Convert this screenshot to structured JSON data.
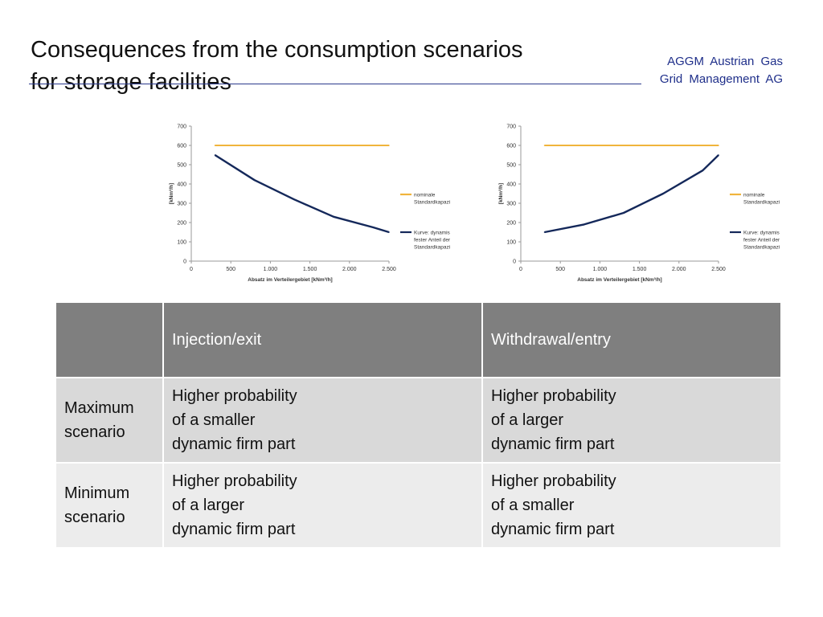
{
  "slide": {
    "title_line1": "Consequences from the consumption scenarios",
    "title_line2": "for storage facilities",
    "brand_line1": "AGGM   Austrian   Gas",
    "brand_line2": "Grid Management  AG"
  },
  "chart_data": [
    {
      "type": "line",
      "xlabel": "Absatz im Verteilergebiet [kNm³/h]",
      "ylabel": "[kNm³/h]",
      "xlim": [
        0,
        2500
      ],
      "ylim": [
        0,
        700
      ],
      "xticks": [
        0,
        500,
        1000,
        1500,
        2000,
        2500
      ],
      "xtick_labels": [
        "0",
        "500",
        "1.000",
        "1.500",
        "2.000",
        "2.500"
      ],
      "yticks": [
        0,
        100,
        200,
        300,
        400,
        500,
        600,
        700
      ],
      "ytick_labels": [
        "0",
        "100",
        "200",
        "300",
        "400",
        "500",
        "600",
        "700"
      ],
      "grid": false,
      "legend_position": "right",
      "series": [
        {
          "name": "nominale Standardkapazität",
          "legend_lines": [
            "nominale",
            "Standardkapazität"
          ],
          "color": "#f0b43c",
          "x": [
            300,
            2500
          ],
          "y": [
            600,
            600
          ]
        },
        {
          "name": "Kurve: dynamisch fester Anteil der Standardkapazität",
          "legend_lines": [
            "Kurve: dynamisch",
            "fester Anteil der",
            "Standardkapazität"
          ],
          "color": "#14285a",
          "x": [
            300,
            800,
            1300,
            1800,
            2300,
            2500
          ],
          "y": [
            550,
            420,
            320,
            230,
            175,
            150
          ]
        }
      ]
    },
    {
      "type": "line",
      "xlabel": "Absatz im Verteilergebiet [kNm³/h]",
      "ylabel": "[kNm³/h]",
      "xlim": [
        0,
        2500
      ],
      "ylim": [
        0,
        700
      ],
      "xticks": [
        0,
        500,
        1000,
        1500,
        2000,
        2500
      ],
      "xtick_labels": [
        "0",
        "500",
        "1.000",
        "1.500",
        "2.000",
        "2.500"
      ],
      "yticks": [
        0,
        100,
        200,
        300,
        400,
        500,
        600,
        700
      ],
      "ytick_labels": [
        "0",
        "100",
        "200",
        "300",
        "400",
        "500",
        "600",
        "700"
      ],
      "grid": false,
      "legend_position": "right",
      "series": [
        {
          "name": "nominale Standardkapazität",
          "legend_lines": [
            "nominale",
            "Standardkapazität"
          ],
          "color": "#f0b43c",
          "x": [
            300,
            2500
          ],
          "y": [
            600,
            600
          ]
        },
        {
          "name": "Kurve: dynamisch fester Anteil der Standardkapazität",
          "legend_lines": [
            "Kurve: dynamisch",
            "fester Anteil der",
            "Standardkapazität"
          ],
          "color": "#14285a",
          "x": [
            300,
            800,
            1300,
            1800,
            2300,
            2500
          ],
          "y": [
            150,
            190,
            250,
            350,
            470,
            550
          ]
        }
      ]
    }
  ],
  "table": {
    "header": [
      "",
      "Injection/exit",
      "Withdrawal/entry"
    ],
    "rows": [
      {
        "label": [
          "Maximum",
          "scenario"
        ],
        "injection": [
          "Higher probability",
          "of a smaller",
          "dynamic firm part"
        ],
        "withdrawal": [
          "Higher probability",
          "of a larger",
          "dynamic firm part"
        ]
      },
      {
        "label": [
          "Minimum",
          "scenario"
        ],
        "injection": [
          "Higher probability",
          "of a larger",
          "dynamic firm part"
        ],
        "withdrawal": [
          "Higher probability",
          "of a smaller",
          "dynamic firm part"
        ]
      }
    ]
  }
}
